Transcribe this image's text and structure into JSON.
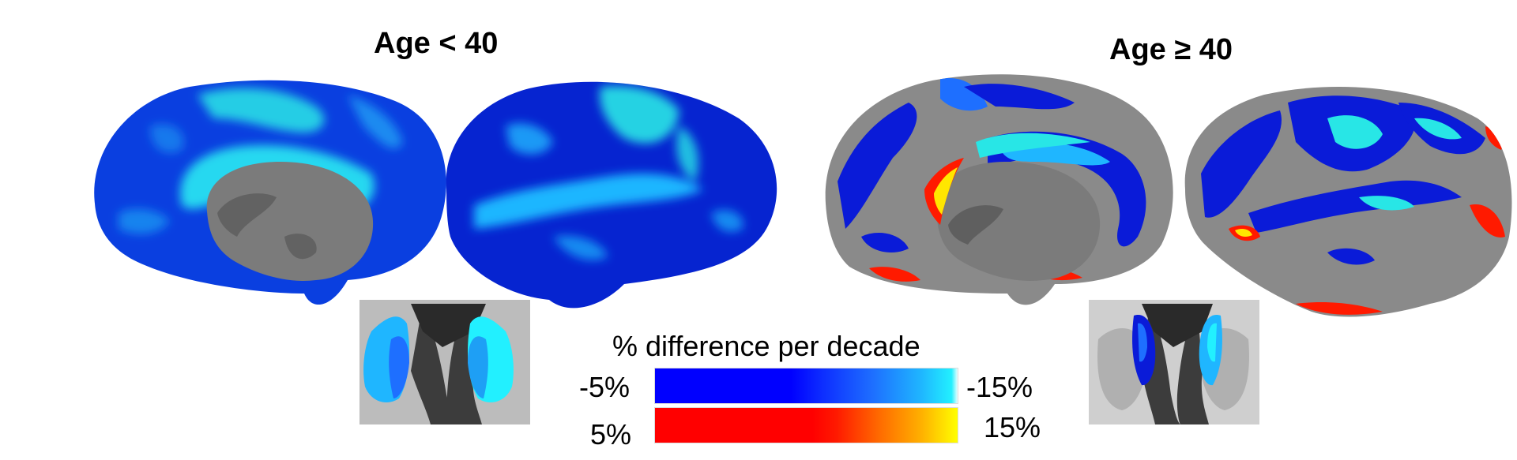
{
  "panels": {
    "young": {
      "title": "Age < 40"
    },
    "old": {
      "title": "Age ≥ 40"
    }
  },
  "colorbar": {
    "title": "% difference per decade",
    "negative": {
      "left_label": "-5%",
      "right_label": "-15%",
      "colors": [
        "#0000ff",
        "#0d2cff",
        "#1e6fff",
        "#1fb6ff",
        "#22f0ff"
      ]
    },
    "positive": {
      "left_label": "5%",
      "right_label": "15%",
      "colors": [
        "#ff0000",
        "#ff1a00",
        "#ff6a00",
        "#ffb000",
        "#ffff00"
      ]
    }
  },
  "colors": {
    "brain_gray": "#8a8a8a",
    "brain_dark_gray": "#5f5f5f",
    "blue": "#0a1bd8",
    "cyan": "#28e6e6",
    "red": "#ff1a00",
    "yellow": "#ffe600"
  }
}
